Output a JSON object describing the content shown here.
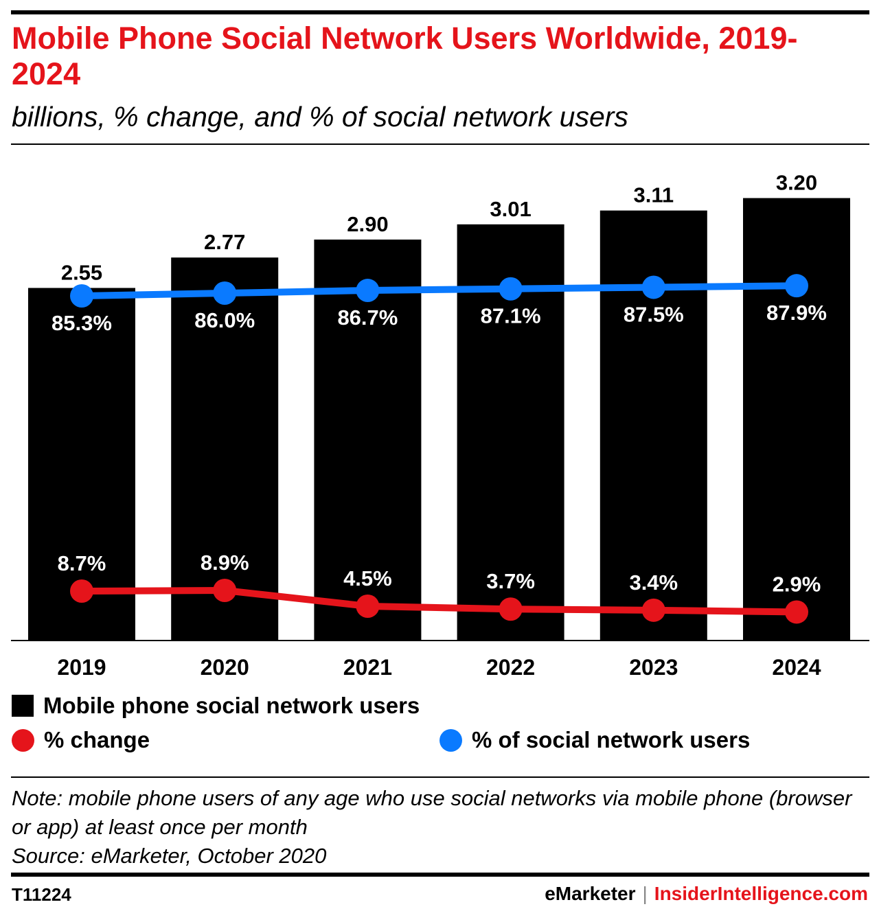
{
  "header": {
    "title": "Mobile Phone Social Network Users Worldwide, 2019-2024",
    "subtitle": "billions, % change, and % of social network users"
  },
  "colors": {
    "bar": "#000000",
    "change_line": "#e5141b",
    "share_line": "#0a7aff",
    "title": "#e5141b"
  },
  "legend": {
    "bars": "Mobile phone social network users",
    "change": "% change",
    "share": "% of social network users"
  },
  "chart_data": {
    "type": "bar",
    "categories": [
      "2019",
      "2020",
      "2021",
      "2022",
      "2023",
      "2024"
    ],
    "series": [
      {
        "name": "Mobile phone social network users",
        "type": "bar",
        "values": [
          2.55,
          2.77,
          2.9,
          3.01,
          3.11,
          3.2
        ],
        "labels": [
          "2.55",
          "2.77",
          "2.90",
          "3.01",
          "3.11",
          "3.20"
        ]
      },
      {
        "name": "% change",
        "type": "line",
        "values": [
          8.7,
          8.9,
          4.5,
          3.7,
          3.4,
          2.9
        ],
        "labels": [
          "8.7%",
          "8.9%",
          "4.5%",
          "3.7%",
          "3.4%",
          "2.9%"
        ]
      },
      {
        "name": "% of social network users",
        "type": "line",
        "values": [
          85.3,
          86.0,
          86.7,
          87.1,
          87.5,
          87.9
        ],
        "labels": [
          "85.3%",
          "86.0%",
          "86.7%",
          "87.1%",
          "87.5%",
          "87.9%"
        ]
      }
    ],
    "legend_position": "bottom",
    "grid": false
  },
  "footer": {
    "note": "Note: mobile phone users of any age who use social networks via mobile phone (browser or app) at least once per month",
    "source": "Source: eMarketer, October 2020",
    "chart_id": "T11224",
    "brand_left": "eMarketer",
    "separator": "|",
    "brand_right": "InsiderIntelligence.com"
  }
}
